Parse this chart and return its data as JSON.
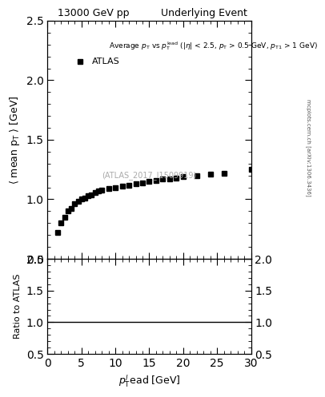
{
  "title_left": "13000 GeV pp",
  "title_right": "Underlying Event",
  "annotation_text": "Average p_{T} vs p_{T}^{lead} (|\\eta| < 2.5, p_{T} > 0.5 GeV, p_{T1} > 1 GeV)",
  "legend_label": "ATLAS",
  "xlabel": "p$_{T}^{l}$ead [GeV]",
  "ylabel": "\\langle mean p_{T} \\rangle [GeV]",
  "ylabel_ratio": "Ratio to ATLAS",
  "watermark": "(ATLAS_2017_I1509919)",
  "side_text": "mcplots.cern.ch [arXiv:1306.3436]",
  "xlim": [
    0,
    30
  ],
  "ylim_main": [
    0.5,
    2.5
  ],
  "ylim_ratio": [
    0.5,
    2.0
  ],
  "yticks_main": [
    0.5,
    1.0,
    1.5,
    2.0,
    2.5
  ],
  "yticks_ratio": [
    0.5,
    1.0,
    1.5,
    2.0
  ],
  "data_x": [
    1.5,
    2.0,
    2.5,
    3.0,
    3.5,
    4.0,
    4.5,
    5.0,
    5.5,
    6.0,
    6.5,
    7.0,
    7.5,
    8.0,
    9.0,
    10.0,
    11.0,
    12.0,
    13.0,
    14.0,
    15.0,
    16.0,
    17.0,
    18.0,
    19.0,
    20.0,
    22.0,
    24.0,
    26.0,
    30.0
  ],
  "data_y": [
    0.72,
    0.8,
    0.85,
    0.9,
    0.92,
    0.96,
    0.98,
    1.0,
    1.01,
    1.03,
    1.04,
    1.06,
    1.07,
    1.08,
    1.09,
    1.1,
    1.11,
    1.12,
    1.13,
    1.14,
    1.15,
    1.16,
    1.17,
    1.17,
    1.18,
    1.19,
    1.2,
    1.21,
    1.22,
    1.25
  ],
  "data_color": "#000000",
  "ratio_line_color": "#000000",
  "ratio_band_color_green": "#00cc00",
  "ratio_band_color_yellow": "#ffff00",
  "background_color": "#ffffff"
}
